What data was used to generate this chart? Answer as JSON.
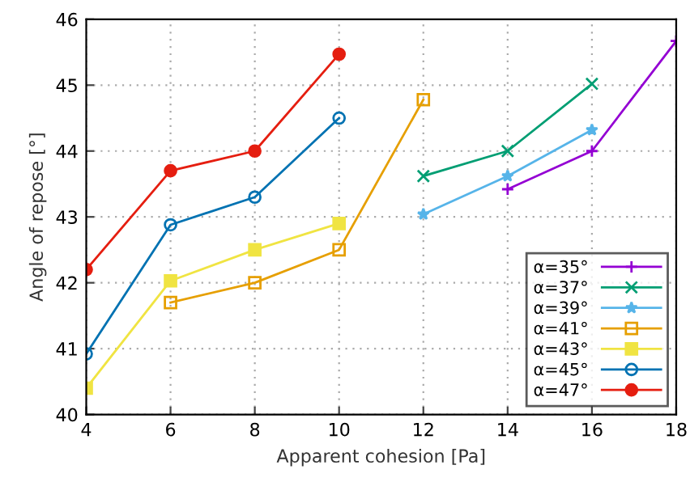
{
  "chart_data": {
    "type": "line",
    "xlabel": "Apparent cohesion [Pa]",
    "ylabel": "Angle of repose [°]",
    "xlim": [
      4,
      18
    ],
    "xticks": [
      4,
      6,
      8,
      10,
      12,
      14,
      16,
      18
    ],
    "ylim": [
      40,
      46
    ],
    "yticks": [
      40,
      41,
      42,
      43,
      44,
      45,
      46
    ],
    "grid": true,
    "legend": "bottom right",
    "series": [
      {
        "name": "α=35°",
        "color": "#9400d3",
        "marker": "plus",
        "x": [
          14,
          16,
          18
        ],
        "values": [
          43.42,
          44.0,
          45.67
        ]
      },
      {
        "name": "α=37°",
        "color": "#009e73",
        "marker": "cross",
        "x": [
          12,
          14,
          16
        ],
        "values": [
          43.62,
          44.0,
          45.02
        ]
      },
      {
        "name": "α=39°",
        "color": "#56b4e9",
        "marker": "star",
        "x": [
          12,
          14,
          16
        ],
        "values": [
          43.04,
          43.62,
          44.32
        ]
      },
      {
        "name": "α=41°",
        "color": "#e69f00",
        "marker": "square_open",
        "x": [
          6,
          8,
          10,
          12
        ],
        "values": [
          41.7,
          42.0,
          42.5,
          44.78
        ]
      },
      {
        "name": "α=43°",
        "color": "#f0e442",
        "marker": "square",
        "x": [
          4,
          6,
          8,
          10
        ],
        "values": [
          40.4,
          42.03,
          42.5,
          42.9
        ]
      },
      {
        "name": "α=45°",
        "color": "#0072b2",
        "marker": "circle_open",
        "x": [
          4,
          6,
          8,
          10
        ],
        "values": [
          40.92,
          42.88,
          43.3,
          44.5
        ]
      },
      {
        "name": "α=47°",
        "color": "#e51e10",
        "marker": "circle",
        "x": [
          4,
          6,
          8,
          10
        ],
        "values": [
          42.2,
          43.7,
          44.0,
          45.47
        ]
      }
    ]
  }
}
